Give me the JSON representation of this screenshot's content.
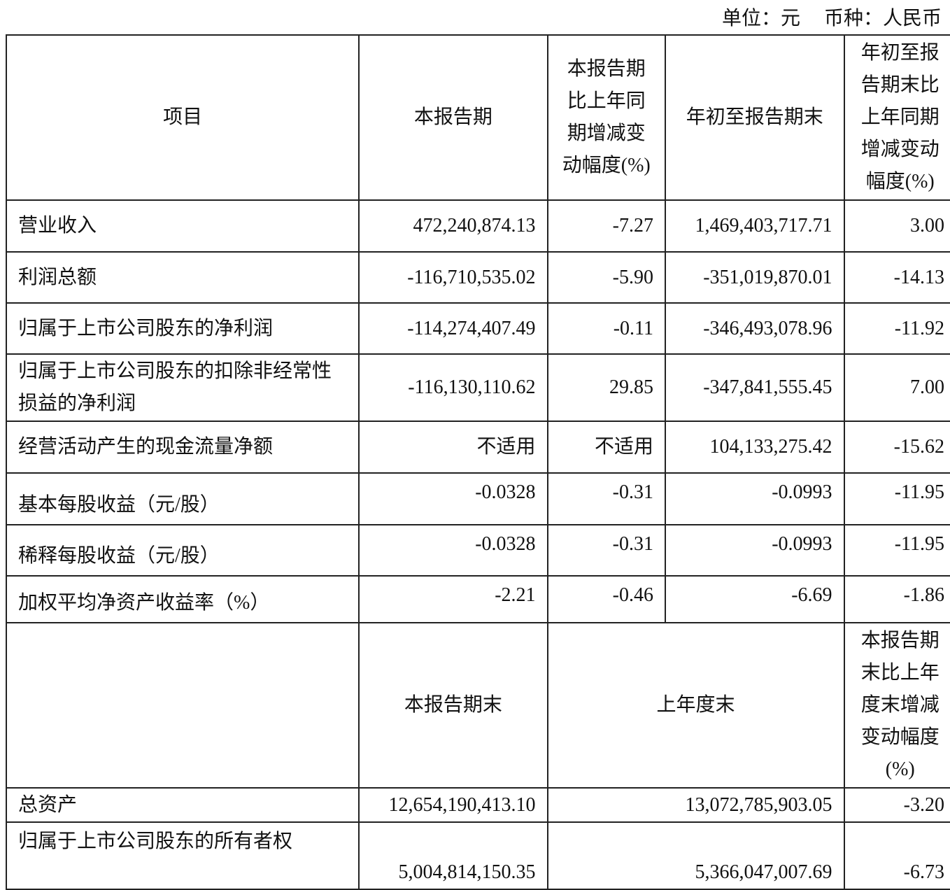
{
  "unit": {
    "unit_label": "单位：元",
    "currency_label": "币种：人民币"
  },
  "header": [
    "项目",
    "本报告期",
    "本报告期比上年同期增减变动幅度(%)",
    "年初至报告期末",
    "年初至报告期末比上年同期增减变动幅度(%)"
  ],
  "rows": [
    {
      "item": "营业收入",
      "current": "472,240,874.13",
      "current_change": "-7.27",
      "ytd": "1,469,403,717.71",
      "ytd_change": "3.00"
    },
    {
      "item": "利润总额",
      "current": "-116,710,535.02",
      "current_change": "-5.90",
      "ytd": "-351,019,870.01",
      "ytd_change": "-14.13"
    },
    {
      "item": "归属于上市公司股东的净利润",
      "current": "-114,274,407.49",
      "current_change": "-0.11",
      "ytd": "-346,493,078.96",
      "ytd_change": "-11.92"
    },
    {
      "item": "归属于上市公司股东的扣除非经常性损益的净利润",
      "current": "-116,130,110.62",
      "current_change": "29.85",
      "ytd": "-347,841,555.45",
      "ytd_change": "7.00"
    },
    {
      "item": "经营活动产生的现金流量净额",
      "current": "不适用",
      "current_change": "不适用",
      "ytd": "104,133,275.42",
      "ytd_change": "-15.62"
    },
    {
      "item": "基本每股收益（元/股）",
      "current": "-0.0328",
      "current_change": "-0.31",
      "ytd": "-0.0993",
      "ytd_change": "-11.95"
    },
    {
      "item": "稀释每股收益（元/股）",
      "current": "-0.0328",
      "current_change": "-0.31",
      "ytd": "-0.0993",
      "ytd_change": "-11.95"
    },
    {
      "item": "加权平均净资产收益率（%）",
      "current": "-2.21",
      "current_change": "-0.46",
      "ytd": "-6.69",
      "ytd_change": "-1.86"
    }
  ],
  "header2": [
    "",
    "本报告期末",
    "上年度末",
    "本报告期末比上年度末增减变动幅度(%)"
  ],
  "rows2": [
    {
      "item": "总资产",
      "period_end": "12,654,190,413.10",
      "prior_year_end": "13,072,785,903.05",
      "change": "-3.20"
    },
    {
      "item": "归属于上市公司股东的所有者权",
      "period_end": "5,004,814,150.35",
      "prior_year_end": "5,366,047,007.69",
      "change": "-6.73"
    }
  ]
}
